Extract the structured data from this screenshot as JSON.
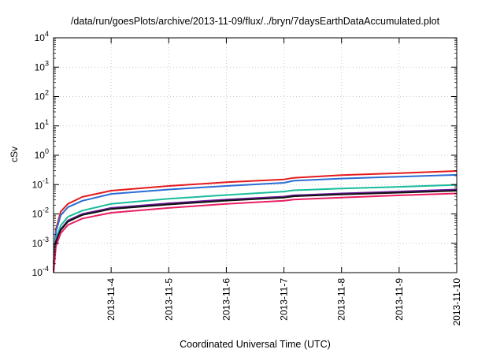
{
  "chart_data": {
    "type": "line",
    "title": "/data/run/goesPlots/archive/2013-11-09/flux/../bryn/7daysEarthDataAccumulated.plot",
    "xlabel": "Coordinated Universal Time (UTC)",
    "ylabel": "cSv",
    "y_scale": "log",
    "ylim": [
      0.0001,
      10000
    ],
    "y_ticks": [
      {
        "value": 0.0001,
        "base": "10",
        "exp": "-4"
      },
      {
        "value": 0.001,
        "base": "10",
        "exp": "-3"
      },
      {
        "value": 0.01,
        "base": "10",
        "exp": "-2"
      },
      {
        "value": 0.1,
        "base": "10",
        "exp": "-1"
      },
      {
        "value": 1,
        "base": "10",
        "exp": "0"
      },
      {
        "value": 10,
        "base": "10",
        "exp": "1"
      },
      {
        "value": 100,
        "base": "10",
        "exp": "2"
      },
      {
        "value": 1000,
        "base": "10",
        "exp": "3"
      },
      {
        "value": 10000,
        "base": "10",
        "exp": "4"
      }
    ],
    "xlim": [
      "2013-11-03T00:00",
      "2013-11-10T00:00"
    ],
    "x_ticks": [
      "2013-11-4",
      "2013-11-5",
      "2013-11-6",
      "2013-11-7",
      "2013-11-8",
      "2013-11-9",
      "2013-11-10"
    ],
    "grid": true,
    "x": [
      "2013-11-03T00:00",
      "2013-11-03T01:00",
      "2013-11-03T03:00",
      "2013-11-03T06:00",
      "2013-11-03T12:00",
      "2013-11-04T00:00",
      "2013-11-05T00:00",
      "2013-11-06T00:00",
      "2013-11-07T00:00",
      "2013-11-07T04:00",
      "2013-11-08T00:00",
      "2013-11-09T00:00",
      "2013-11-10T00:00"
    ],
    "series": [
      {
        "color": "#e41a1c",
        "values": [
          0.0002,
          0.003,
          0.012,
          0.022,
          0.038,
          0.062,
          0.09,
          0.12,
          0.15,
          0.17,
          0.21,
          0.245,
          0.29
        ]
      },
      {
        "color": "#2b6cd4",
        "values": [
          0.0002,
          0.0025,
          0.009,
          0.017,
          0.028,
          0.048,
          0.068,
          0.09,
          0.115,
          0.135,
          0.16,
          0.185,
          0.215
        ]
      },
      {
        "color": "#1abc9c",
        "values": [
          0.00015,
          0.0015,
          0.004,
          0.008,
          0.013,
          0.022,
          0.033,
          0.044,
          0.058,
          0.064,
          0.073,
          0.084,
          0.098
        ]
      },
      {
        "color": "#6a1b9a",
        "values": [
          0.00012,
          0.0012,
          0.003,
          0.006,
          0.01,
          0.016,
          0.023,
          0.031,
          0.039,
          0.043,
          0.05,
          0.058,
          0.068
        ]
      },
      {
        "color": "#111111",
        "values": [
          0.00012,
          0.0011,
          0.0028,
          0.0055,
          0.0092,
          0.0148,
          0.021,
          0.0285,
          0.036,
          0.04,
          0.046,
          0.053,
          0.062
        ]
      },
      {
        "color": "#e91e63",
        "values": [
          0.0001,
          0.0008,
          0.0022,
          0.0042,
          0.007,
          0.011,
          0.016,
          0.022,
          0.028,
          0.031,
          0.036,
          0.043,
          0.05
        ]
      }
    ]
  }
}
